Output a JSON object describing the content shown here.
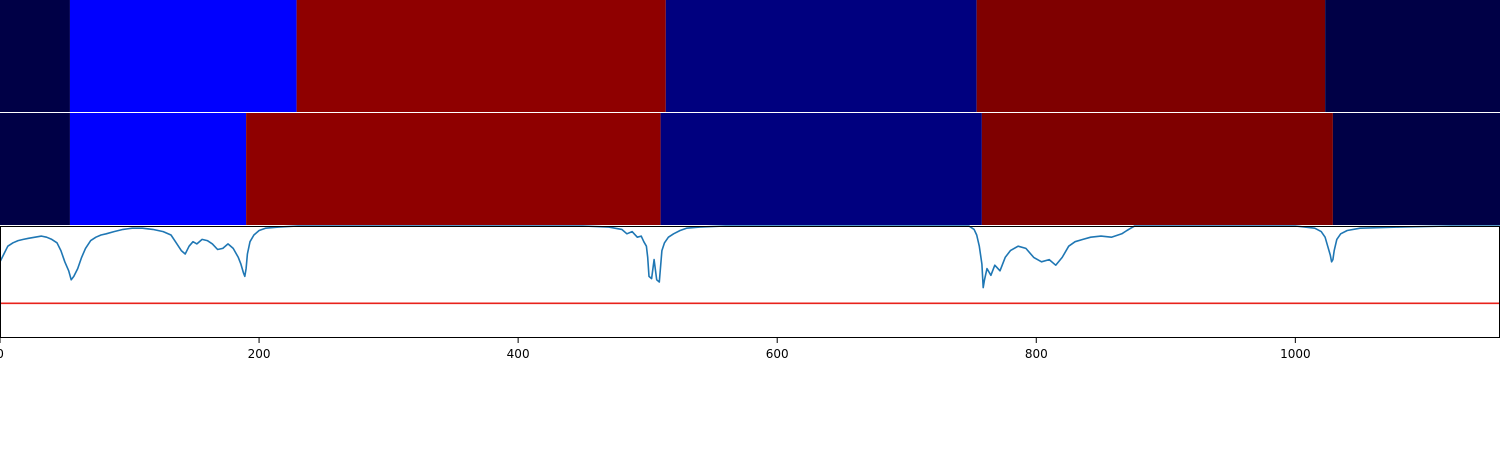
{
  "chart_data": {
    "type": "heatmap",
    "panels": [
      {
        "kind": "segment-bar",
        "segments": [
          {
            "start": 0,
            "end": 54,
            "color": "#000046"
          },
          {
            "start": 54,
            "end": 229,
            "color": "#0000ff"
          },
          {
            "start": 229,
            "end": 514,
            "color": "#8f0000"
          },
          {
            "start": 514,
            "end": 754,
            "color": "#00007f"
          },
          {
            "start": 754,
            "end": 1023,
            "color": "#7f0000"
          },
          {
            "start": 1023,
            "end": 1158,
            "color": "#000046"
          }
        ]
      },
      {
        "kind": "segment-bar",
        "segments": [
          {
            "start": 0,
            "end": 54,
            "color": "#000046"
          },
          {
            "start": 54,
            "end": 190,
            "color": "#0000ff"
          },
          {
            "start": 190,
            "end": 510,
            "color": "#8f0000"
          },
          {
            "start": 510,
            "end": 758,
            "color": "#00007f"
          },
          {
            "start": 758,
            "end": 1029,
            "color": "#7f0000"
          },
          {
            "start": 1029,
            "end": 1158,
            "color": "#000046"
          }
        ]
      },
      {
        "kind": "line",
        "xlim": [
          0,
          1158
        ],
        "ylim": [
          0,
          1
        ],
        "threshold": {
          "y": 0.31,
          "color": "#e8221b"
        },
        "series": [
          {
            "color": "#1f77b4",
            "x": [
              0,
              3,
              6,
              10,
              14,
              18,
              22,
              27,
              32,
              36,
              40,
              44,
              47,
              50,
              53,
              55,
              57,
              60,
              63,
              66,
              70,
              74,
              78,
              82,
              88,
              95,
              102,
              110,
              118,
              126,
              132,
              136,
              140,
              143,
              146,
              149,
              152,
              156,
              160,
              164,
              168,
              172,
              176,
              180,
              184,
              186,
              188,
              189,
              190,
              191,
              193,
              196,
              200,
              205,
              215,
              230,
              260,
              300,
              340,
              380,
              420,
              450,
              470,
              480,
              484,
              488,
              492,
              495,
              497,
              499,
              500,
              501,
              503,
              505,
              507,
              509,
              511,
              513,
              516,
              520,
              525,
              530,
              540,
              560,
              600,
              650,
              700,
              740,
              748,
              752,
              754,
              756,
              758,
              759,
              760,
              762,
              765,
              768,
              772,
              776,
              780,
              786,
              792,
              798,
              804,
              810,
              815,
              820,
              825,
              830,
              836,
              842,
              850,
              858,
              866,
              870,
              873,
              876,
              880,
              900,
              950,
              1000,
              1015,
              1020,
              1023,
              1025,
              1027,
              1028,
              1029,
              1030,
              1032,
              1035,
              1040,
              1050,
              1080,
              1120,
              1158
            ],
            "y": [
              0.68,
              0.75,
              0.82,
              0.85,
              0.87,
              0.88,
              0.89,
              0.9,
              0.91,
              0.9,
              0.88,
              0.85,
              0.78,
              0.68,
              0.6,
              0.52,
              0.55,
              0.62,
              0.72,
              0.8,
              0.87,
              0.9,
              0.92,
              0.93,
              0.95,
              0.97,
              0.98,
              0.98,
              0.97,
              0.95,
              0.92,
              0.85,
              0.78,
              0.75,
              0.82,
              0.86,
              0.84,
              0.88,
              0.87,
              0.84,
              0.79,
              0.8,
              0.84,
              0.8,
              0.72,
              0.66,
              0.58,
              0.55,
              0.62,
              0.75,
              0.86,
              0.92,
              0.96,
              0.98,
              0.99,
              1.0,
              1.0,
              1.0,
              1.0,
              1.0,
              1.0,
              1.0,
              0.99,
              0.97,
              0.93,
              0.95,
              0.9,
              0.91,
              0.86,
              0.82,
              0.72,
              0.55,
              0.53,
              0.7,
              0.52,
              0.5,
              0.78,
              0.85,
              0.9,
              0.93,
              0.96,
              0.98,
              0.99,
              1.0,
              1.0,
              1.0,
              1.0,
              1.0,
              1.0,
              0.97,
              0.92,
              0.82,
              0.66,
              0.45,
              0.52,
              0.62,
              0.56,
              0.65,
              0.6,
              0.72,
              0.78,
              0.82,
              0.8,
              0.72,
              0.68,
              0.7,
              0.65,
              0.72,
              0.82,
              0.86,
              0.88,
              0.9,
              0.91,
              0.9,
              0.93,
              0.96,
              0.98,
              1.0,
              1.0,
              1.0,
              1.0,
              1.0,
              0.98,
              0.95,
              0.9,
              0.82,
              0.74,
              0.68,
              0.7,
              0.78,
              0.88,
              0.93,
              0.96,
              0.98,
              0.99,
              1.0,
              1.0
            ]
          }
        ]
      }
    ],
    "x_ticks": [
      0,
      200,
      400,
      600,
      800,
      1000
    ],
    "grid": false,
    "title": "",
    "xlabel": "",
    "ylabel": ""
  }
}
